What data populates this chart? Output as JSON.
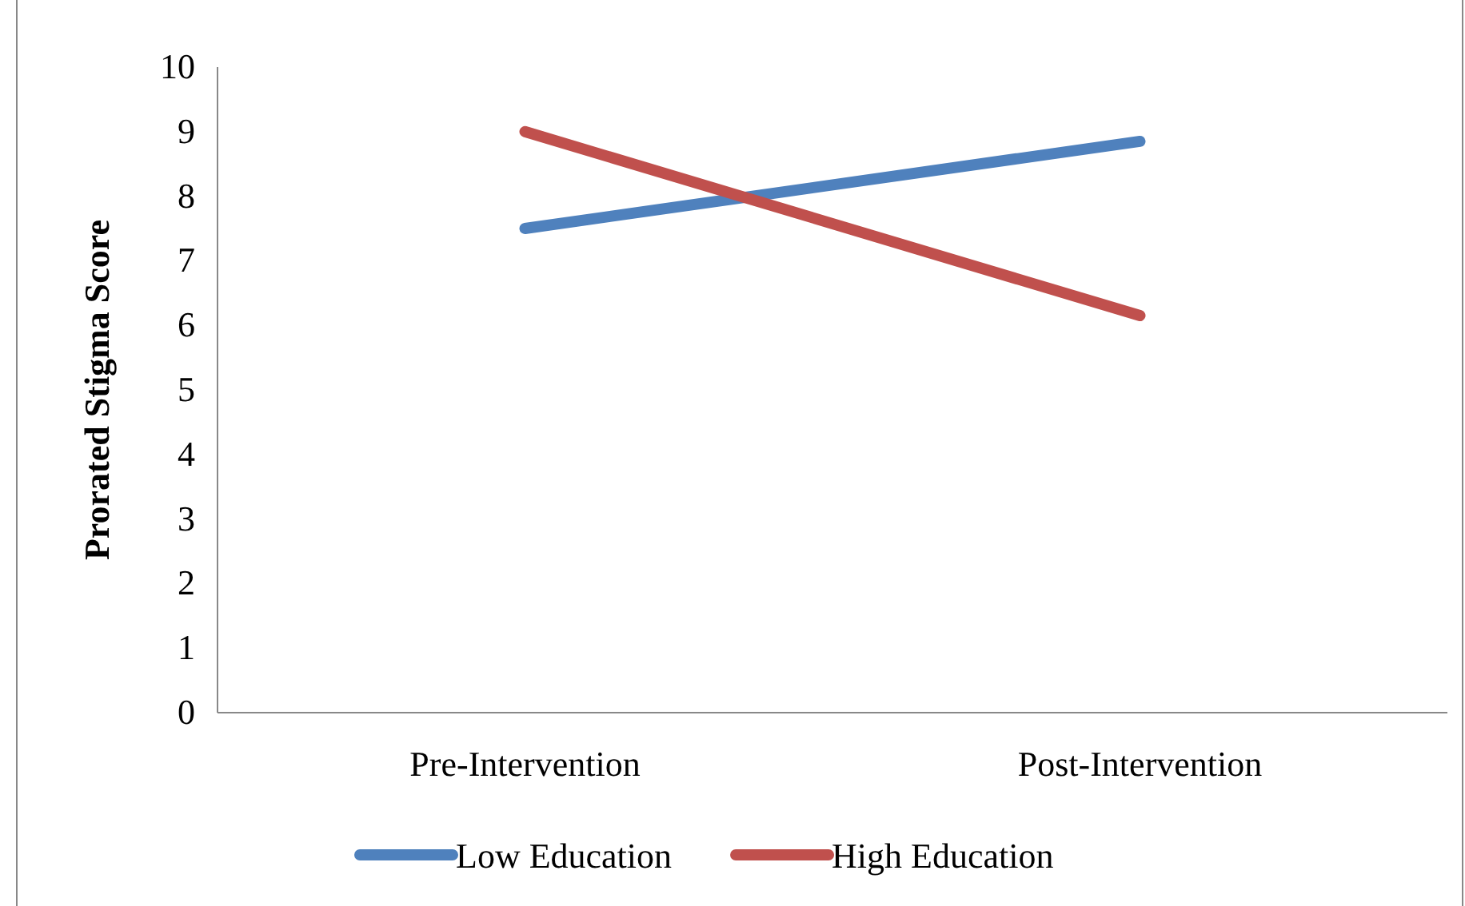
{
  "chart_data": {
    "type": "line",
    "ylabel": "Prorated Stigma Score",
    "categories": [
      "Pre-Intervention",
      "Post-Intervention"
    ],
    "series": [
      {
        "name": "Low Education",
        "color": "#4f81bd",
        "values": [
          7.5,
          8.85
        ]
      },
      {
        "name": "High Education",
        "color": "#c0504d",
        "values": [
          9.0,
          6.15
        ]
      }
    ],
    "ylim": [
      0,
      10
    ],
    "yticks": [
      0,
      1,
      2,
      3,
      4,
      5,
      6,
      7,
      8,
      9,
      10
    ],
    "grid": false,
    "legend": "bottom",
    "marker": "none",
    "line_style": "solid"
  }
}
